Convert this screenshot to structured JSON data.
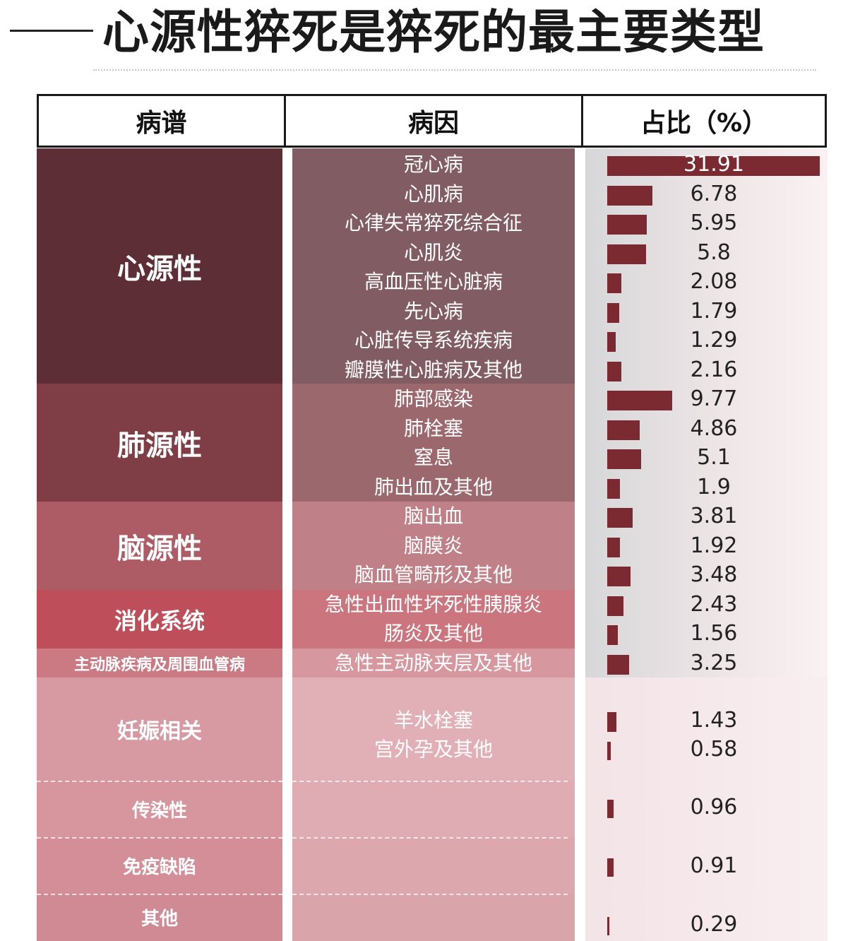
{
  "title": "心源性猝死是猝死的最主要类型",
  "headers": {
    "category": "病谱",
    "cause": "病因",
    "percent": "占比（%）"
  },
  "categories": [
    {
      "name": "心源性",
      "color": "#5e2e37"
    },
    {
      "name": "肺源性",
      "color": "#7f3e45"
    },
    {
      "name": "脑源性",
      "color": "#ad5c65"
    },
    {
      "name": "消化系统",
      "color": "#bd4e5a"
    },
    {
      "name": "主动脉疾病及周围血管病",
      "color": "#cb7a84"
    },
    {
      "name": "妊娠相关",
      "color": "#d89aa2"
    },
    {
      "name": "传染性",
      "color": "#d7959d"
    },
    {
      "name": "免疫缺陷",
      "color": "#d48e97"
    },
    {
      "name": "其他",
      "color": "#d08a93"
    }
  ],
  "chart_data": {
    "type": "bar",
    "orientation": "horizontal",
    "title": "心源性猝死是猝死的最主要类型",
    "columns": [
      "病谱",
      "病因",
      "占比（%）"
    ],
    "rows": [
      {
        "category": "心源性",
        "cause": "冠心病",
        "value": 31.91
      },
      {
        "category": "心源性",
        "cause": "心肌病",
        "value": 6.78
      },
      {
        "category": "心源性",
        "cause": "心律失常猝死综合征",
        "value": 5.95
      },
      {
        "category": "心源性",
        "cause": "心肌炎",
        "value": 5.8
      },
      {
        "category": "心源性",
        "cause": "高血压性心脏病",
        "value": 2.08
      },
      {
        "category": "心源性",
        "cause": "先心病",
        "value": 1.79
      },
      {
        "category": "心源性",
        "cause": "心脏传导系统疾病",
        "value": 1.29
      },
      {
        "category": "心源性",
        "cause": "瓣膜性心脏病及其他",
        "value": 2.16
      },
      {
        "category": "肺源性",
        "cause": "肺部感染",
        "value": 9.77
      },
      {
        "category": "肺源性",
        "cause": "肺栓塞",
        "value": 4.86
      },
      {
        "category": "肺源性",
        "cause": "窒息",
        "value": 5.1
      },
      {
        "category": "肺源性",
        "cause": "肺出血及其他",
        "value": 1.9
      },
      {
        "category": "脑源性",
        "cause": "脑出血",
        "value": 3.81
      },
      {
        "category": "脑源性",
        "cause": "脑膜炎",
        "value": 1.92
      },
      {
        "category": "脑源性",
        "cause": "脑血管畸形及其他",
        "value": 3.48
      },
      {
        "category": "消化系统",
        "cause": "急性出血性坏死性胰腺炎",
        "value": 2.43
      },
      {
        "category": "消化系统",
        "cause": "肠炎及其他",
        "value": 1.56
      },
      {
        "category": "主动脉疾病及周围血管病",
        "cause": "急性主动脉夹层及其他",
        "value": 3.25
      },
      {
        "category": "妊娠相关",
        "cause": "羊水栓塞",
        "value": 1.43
      },
      {
        "category": "妊娠相关",
        "cause": "宫外孕及其他",
        "value": 0.58
      },
      {
        "category": "传染性",
        "cause": "",
        "value": 0.96
      },
      {
        "category": "免疫缺陷",
        "cause": "",
        "value": 0.91
      },
      {
        "category": "其他",
        "cause": "",
        "value": 0.29
      }
    ],
    "xlim": [
      0,
      32
    ],
    "grid": false,
    "legend": "none",
    "bar_color": "#7b2a31"
  }
}
